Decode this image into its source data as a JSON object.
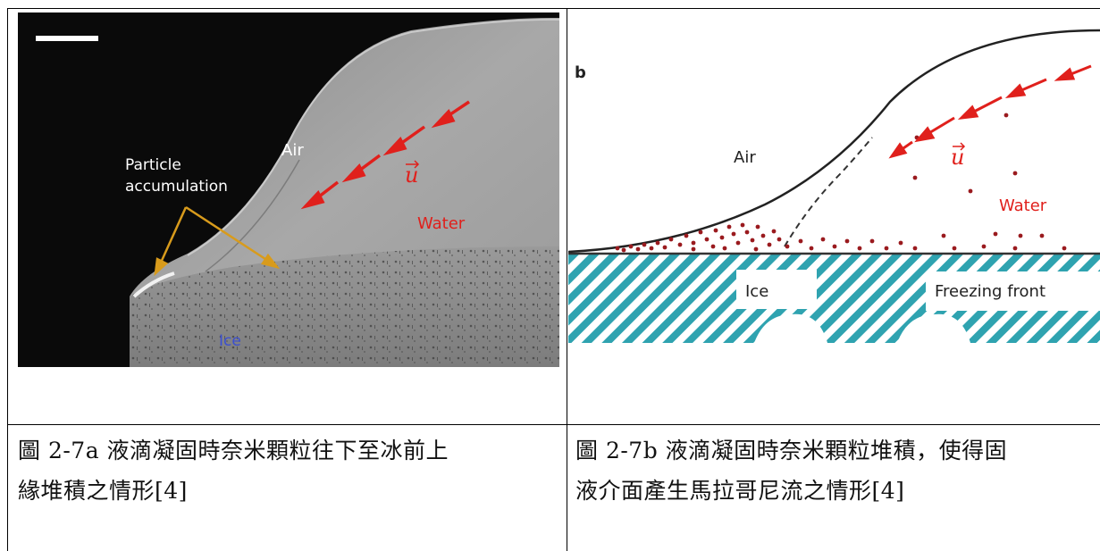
{
  "figure_a": {
    "labels": {
      "air": "Air",
      "particle_line1": "Particle",
      "particle_line2": "accumulation",
      "velocity": "u",
      "water": "Water",
      "ice": "Ice"
    },
    "caption_line1": "圖 2-7a  液滴凝固時奈米顆粒往下至冰前上",
    "caption_line2": "緣堆積之情形[4]"
  },
  "figure_b": {
    "labels": {
      "panel": "b",
      "air": "Air",
      "velocity": "u",
      "water": "Water",
      "ice": "Ice",
      "freezing_front": "Freezing front"
    },
    "caption_line1": "圖 2-7b 液滴凝固時奈米顆粒堆積，使得固",
    "caption_line2": "液介面產生馬拉哥尼流之情形[4]"
  },
  "colors": {
    "arrow": "#e0201c",
    "particle": "#9a1a1e",
    "ice_hatch": "#2fa3b0",
    "water_label": "#e0201c",
    "ice_label_a": "#3b4fd0",
    "accumulation_arrow": "#d89b1c"
  }
}
